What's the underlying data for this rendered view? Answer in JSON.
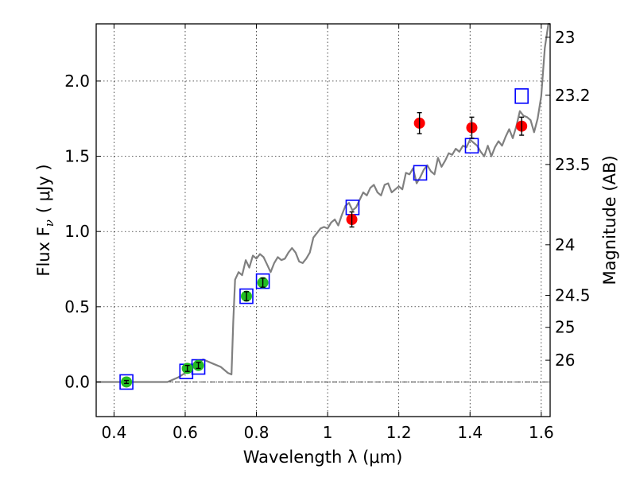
{
  "chart_data": {
    "type": "scatter",
    "xlabel": "Wavelength  λ (μm)",
    "ylabel": "Flux  F",
    "ylabel_sub": "ν",
    "ylabel_unit": "( μJy )",
    "y2label": "Magnitude (AB)",
    "xlim": [
      0.35,
      1.625
    ],
    "ylim": [
      -0.23,
      2.38
    ],
    "x_ticks": [
      0.4,
      0.6,
      0.8,
      1.0,
      1.2,
      1.4,
      1.6
    ],
    "x_tick_labels": [
      "0.4",
      "0.6",
      "0.8",
      "1",
      "1.2",
      "1.4",
      "1.6"
    ],
    "y_ticks": [
      0.0,
      0.5,
      1.0,
      1.5,
      2.0
    ],
    "y_tick_labels": [
      "0.0",
      "0.5",
      "1.0",
      "1.5",
      "2.0"
    ],
    "mag_ticks": [
      23,
      23.2,
      23.5,
      24,
      24.5,
      25,
      26
    ],
    "mag_tick_labels": [
      "23",
      "23.2",
      "23.5",
      "24",
      "24.5",
      "25",
      "26"
    ],
    "grid": true,
    "colors": {
      "model": "#808080",
      "measured_red": "#ff0000",
      "measured_green": "#22bb22",
      "model_box": "#0000ff",
      "errorbar": "#000000"
    },
    "model_spectrum": {
      "x": [
        0.35,
        0.4,
        0.45,
        0.5,
        0.55,
        0.58,
        0.6,
        0.62,
        0.64,
        0.65,
        0.66,
        0.68,
        0.7,
        0.72,
        0.73,
        0.735,
        0.74,
        0.75,
        0.76,
        0.77,
        0.78,
        0.79,
        0.8,
        0.81,
        0.82,
        0.83,
        0.84,
        0.85,
        0.86,
        0.87,
        0.88,
        0.89,
        0.9,
        0.91,
        0.92,
        0.93,
        0.94,
        0.95,
        0.96,
        0.97,
        0.98,
        0.99,
        1.0,
        1.01,
        1.02,
        1.03,
        1.04,
        1.05,
        1.06,
        1.07,
        1.08,
        1.09,
        1.1,
        1.11,
        1.12,
        1.13,
        1.14,
        1.15,
        1.16,
        1.17,
        1.18,
        1.19,
        1.2,
        1.21,
        1.22,
        1.23,
        1.24,
        1.25,
        1.26,
        1.27,
        1.28,
        1.29,
        1.3,
        1.31,
        1.32,
        1.33,
        1.34,
        1.35,
        1.36,
        1.37,
        1.38,
        1.39,
        1.4,
        1.41,
        1.42,
        1.43,
        1.44,
        1.45,
        1.46,
        1.47,
        1.48,
        1.49,
        1.5,
        1.51,
        1.52,
        1.53,
        1.54,
        1.55,
        1.56,
        1.57,
        1.58,
        1.59,
        1.6,
        1.61,
        1.62,
        1.625
      ],
      "y": [
        0.0,
        0.0,
        0.0,
        0.0,
        0.0,
        0.03,
        0.06,
        0.09,
        0.13,
        0.15,
        0.14,
        0.12,
        0.1,
        0.06,
        0.05,
        0.4,
        0.68,
        0.73,
        0.71,
        0.81,
        0.76,
        0.84,
        0.82,
        0.85,
        0.83,
        0.78,
        0.73,
        0.79,
        0.83,
        0.81,
        0.82,
        0.86,
        0.89,
        0.86,
        0.8,
        0.79,
        0.82,
        0.86,
        0.96,
        0.99,
        1.02,
        1.03,
        1.02,
        1.06,
        1.08,
        1.04,
        1.11,
        1.17,
        1.19,
        1.14,
        1.16,
        1.21,
        1.26,
        1.24,
        1.29,
        1.31,
        1.26,
        1.24,
        1.31,
        1.32,
        1.26,
        1.28,
        1.3,
        1.28,
        1.39,
        1.38,
        1.42,
        1.32,
        1.36,
        1.41,
        1.44,
        1.4,
        1.38,
        1.49,
        1.43,
        1.47,
        1.52,
        1.51,
        1.55,
        1.53,
        1.57,
        1.56,
        1.61,
        1.59,
        1.57,
        1.53,
        1.5,
        1.57,
        1.5,
        1.56,
        1.6,
        1.57,
        1.63,
        1.68,
        1.62,
        1.7,
        1.8,
        1.77,
        1.76,
        1.74,
        1.66,
        1.75,
        1.9,
        2.22,
        2.4,
        2.4
      ]
    },
    "model_boxes": {
      "x": [
        0.435,
        0.603,
        0.637,
        0.772,
        0.818,
        1.07,
        1.26,
        1.405,
        1.545
      ],
      "y": [
        0.0,
        0.07,
        0.1,
        0.57,
        0.67,
        1.16,
        1.39,
        1.57,
        1.9
      ]
    },
    "measured_green": {
      "x": [
        0.435,
        0.606,
        0.637,
        0.772,
        0.818
      ],
      "y": [
        0.0,
        0.09,
        0.11,
        0.57,
        0.66
      ],
      "err": [
        0.01,
        0.02,
        0.02,
        0.03,
        0.03
      ]
    },
    "measured_red": {
      "x": [
        1.068,
        1.258,
        1.405,
        1.545
      ],
      "y": [
        1.08,
        1.72,
        1.69,
        1.7
      ],
      "err": [
        0.05,
        0.07,
        0.07,
        0.06
      ]
    }
  }
}
